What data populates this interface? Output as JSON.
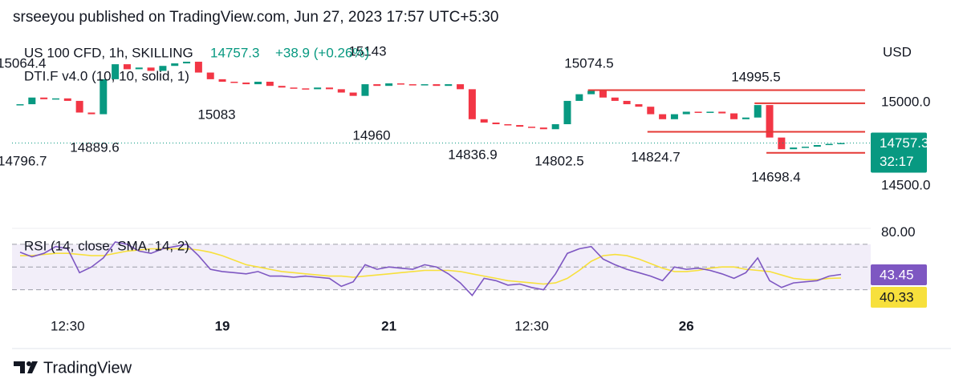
{
  "header": {
    "text": "srseeyou published on TradingView.com, Jun 27, 2023 17:57 UTC+5:30"
  },
  "footer": {
    "brand": "TradingView"
  },
  "chart_data": [
    {
      "type": "candlestick",
      "title": "US 100 CFD, 1h, SKILLING",
      "change": "+38.9 (+0.26%)",
      "indicator": "DTI.F v4.0 (10, 10, solid, 1)",
      "currency": "USD",
      "countdown": "32:17",
      "up_color": "#089981",
      "down_color": "#f23645",
      "level_color": "#e53935",
      "categories": [
        null,
        null,
        null,
        null,
        "12:30",
        null,
        null,
        null,
        null,
        null,
        null,
        null,
        null,
        null,
        null,
        null,
        null,
        "19",
        null,
        null,
        null,
        null,
        null,
        null,
        null,
        null,
        null,
        null,
        null,
        null,
        null,
        "21",
        null,
        null,
        null,
        null,
        null,
        null,
        null,
        null,
        null,
        null,
        null,
        "12:30",
        null,
        null,
        null,
        null,
        null,
        null,
        null,
        null,
        null,
        null,
        null,
        null,
        "26",
        null,
        null,
        null,
        null,
        null,
        null,
        null,
        null,
        null,
        null,
        null,
        null,
        null
      ],
      "values": [
        14990,
        15030,
        15020,
        15025,
        15010,
        14940,
        14930,
        15140,
        15230,
        15200,
        15210,
        15190,
        15220,
        15235,
        15245,
        15180,
        15140,
        15125,
        15120,
        15110,
        15125,
        15100,
        15090,
        15085,
        15080,
        15090,
        15080,
        15060,
        15040,
        15110,
        15100,
        15115,
        15110,
        15105,
        15110,
        15100,
        15110,
        15080,
        14900,
        14880,
        14870,
        14865,
        14855,
        14850,
        14840,
        14870,
        15010,
        15050,
        15070,
        15030,
        15010,
        14990,
        14975,
        14930,
        14900,
        14930,
        14945,
        14940,
        14945,
        14935,
        14900,
        14910,
        14985,
        14790,
        14720,
        14730,
        14735,
        14745,
        14752,
        14757.3
      ],
      "ylim": [
        14245,
        15375
      ],
      "yticks": [
        {
          "value": 14500,
          "label": "14500.0"
        },
        {
          "value": 15000,
          "label": "15000.0"
        }
      ],
      "annotations": [
        15064.4,
        15143,
        15074.5,
        14995.5,
        15083,
        14889.6,
        14960,
        14836.9,
        14802.5,
        14824.7,
        14698.4,
        14796.7
      ],
      "levels": [
        {
          "value": 15074.5,
          "from": 48
        },
        {
          "value": 14995.5,
          "from": 62
        },
        {
          "value": 14824.7,
          "from": 53
        },
        {
          "value": 14698.4,
          "from": 63
        }
      ]
    },
    {
      "type": "line",
      "title": "RSI (14, close, SMA, 14, 2)",
      "series": [
        {
          "color": "#7e57c2",
          "label_text_color": "#ffffff",
          "values": [
            63,
            59,
            62,
            68,
            66,
            45,
            50,
            58,
            72,
            70,
            64,
            62,
            66,
            68,
            70,
            60,
            48,
            46,
            45,
            44,
            46,
            42,
            42,
            41,
            42,
            41,
            40,
            33,
            37,
            52,
            48,
            50,
            49,
            48,
            52,
            50,
            44,
            36,
            25,
            40,
            38,
            34,
            35,
            32,
            30,
            44,
            62,
            66,
            68,
            57,
            52,
            48,
            45,
            42,
            38,
            50,
            48,
            49,
            47,
            44,
            40,
            45,
            58,
            38,
            32,
            36,
            37,
            38,
            42,
            43.45
          ]
        },
        {
          "color": "#f7e03c",
          "label_text_color": "#131722",
          "values": [
            60,
            60,
            61,
            62,
            62,
            61,
            60,
            60,
            62,
            64,
            65,
            66,
            66,
            66,
            66,
            65,
            63,
            60,
            56,
            52,
            50,
            48,
            46,
            45,
            44,
            43,
            42,
            42,
            41,
            42,
            43,
            44,
            45,
            46,
            47,
            47,
            47,
            46,
            44,
            42,
            40,
            38,
            37,
            36,
            35,
            36,
            40,
            47,
            55,
            60,
            61,
            60,
            57,
            53,
            49,
            46,
            46,
            47,
            49,
            50,
            50,
            48,
            47,
            46,
            43,
            40,
            39,
            39,
            40,
            40.33
          ]
        }
      ],
      "ylim": [
        10,
        84
      ],
      "yticks": [
        {
          "value": 80,
          "label": "80.00"
        }
      ],
      "levels": [
        70,
        50,
        30
      ]
    }
  ]
}
